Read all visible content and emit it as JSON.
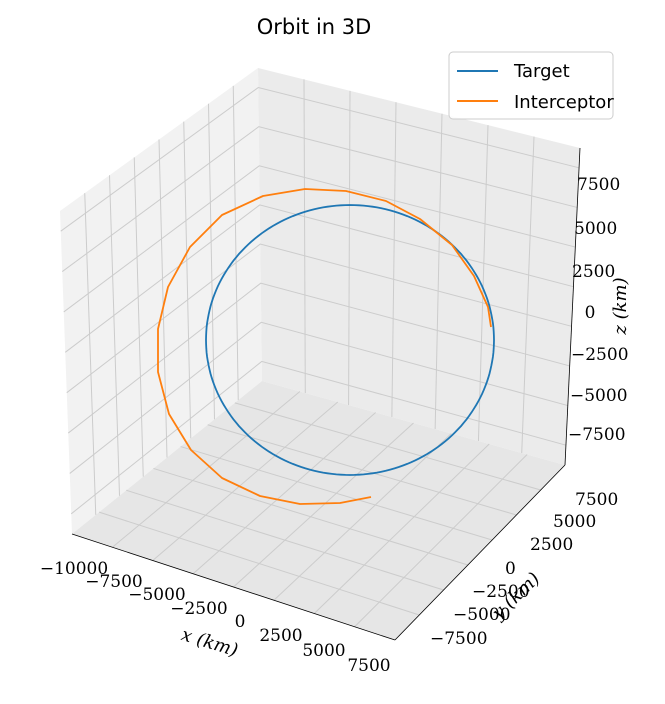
{
  "chart_data": {
    "type": "line3d",
    "title": "Orbit in 3D",
    "xlabel": "x (km)",
    "ylabel": "y (km)",
    "zlabel": "z (km)",
    "x_ticks": [
      "−10000",
      "−7500",
      "−5000",
      "−2500",
      "0",
      "2500",
      "5000",
      "7500"
    ],
    "y_ticks": [
      "−7500",
      "−5000",
      "−2500",
      "0",
      "2500",
      "5000",
      "7500"
    ],
    "z_ticks": [
      "−7500",
      "−5000",
      "−2500",
      "0",
      "2500",
      "5000",
      "7500"
    ],
    "xlim": [
      -10000,
      8000
    ],
    "ylim": [
      -9000,
      9000
    ],
    "zlim": [
      -9000,
      9000
    ],
    "grid": true,
    "legend_position": "top-right",
    "series": [
      {
        "name": "Target",
        "color": "#1f77b4",
        "description_radius_km": 7800,
        "points": "circular"
      },
      {
        "name": "Interceptor",
        "color": "#ff7f0e",
        "points": "spiral"
      }
    ]
  }
}
